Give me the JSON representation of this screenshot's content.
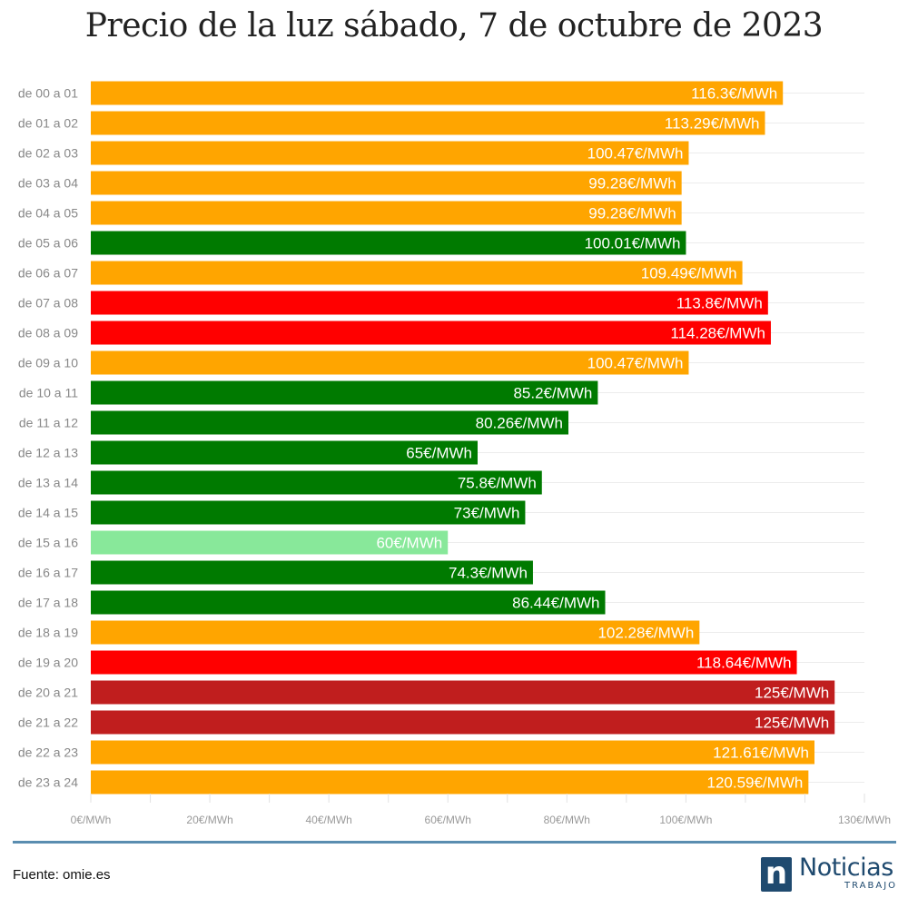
{
  "chart_data": {
    "type": "bar",
    "orientation": "horizontal",
    "title": "Precio de la luz sábado, 7 de octubre de 2023",
    "categories": [
      "de 00 a 01",
      "de 01 a 02",
      "de 02 a 03",
      "de 03 a 04",
      "de 04 a 05",
      "de 05 a 06",
      "de 06 a 07",
      "de 07 a 08",
      "de 08 a 09",
      "de 09 a 10",
      "de 10 a 11",
      "de 11 a 12",
      "de 12 a 13",
      "de 13 a 14",
      "de 14 a 15",
      "de 15 a 16",
      "de 16 a 17",
      "de 17 a 18",
      "de 18 a 19",
      "de 19 a 20",
      "de 20 a 21",
      "de 21 a 22",
      "de 22 a 23",
      "de 23 a 24"
    ],
    "values": [
      116.3,
      113.29,
      100.47,
      99.28,
      99.28,
      100.01,
      109.49,
      113.8,
      114.28,
      100.47,
      85.2,
      80.26,
      65,
      75.8,
      73,
      60,
      74.3,
      86.44,
      102.28,
      118.64,
      125,
      125,
      121.61,
      120.59
    ],
    "value_labels": [
      "116.3€/MWh",
      "113.29€/MWh",
      "100.47€/MWh",
      "99.28€/MWh",
      "99.28€/MWh",
      "100.01€/MWh",
      "109.49€/MWh",
      "113.8€/MWh",
      "114.28€/MWh",
      "100.47€/MWh",
      "85.2€/MWh",
      "80.26€/MWh",
      "65€/MWh",
      "75.8€/MWh",
      "73€/MWh",
      "60€/MWh",
      "74.3€/MWh",
      "86.44€/MWh",
      "102.28€/MWh",
      "118.64€/MWh",
      "125€/MWh",
      "125€/MWh",
      "121.61€/MWh",
      "120.59€/MWh"
    ],
    "bar_colors": [
      "#ffa500",
      "#ffa500",
      "#ffa500",
      "#ffa500",
      "#ffa500",
      "#007a00",
      "#ffa500",
      "#ff0000",
      "#ff0000",
      "#ffa500",
      "#007a00",
      "#007a00",
      "#007a00",
      "#007a00",
      "#007a00",
      "#88e89a",
      "#007a00",
      "#007a00",
      "#ffa500",
      "#ff0000",
      "#c01e1e",
      "#c01e1e",
      "#ffa500",
      "#ffa500"
    ],
    "xlim": [
      0,
      130
    ],
    "x_ticks": [
      {
        "value": 0,
        "label": "0€/MWh"
      },
      {
        "value": 20,
        "label": "20€/MWh"
      },
      {
        "value": 40,
        "label": "40€/MWh"
      },
      {
        "value": 60,
        "label": "60€/MWh"
      },
      {
        "value": 80,
        "label": "80€/MWh"
      },
      {
        "value": 100,
        "label": "100€/MWh"
      },
      {
        "value": 130,
        "label": "130€/MWh"
      }
    ],
    "minor_ticks": [
      10,
      30,
      50,
      70,
      90,
      110,
      120
    ],
    "xlabel": "",
    "ylabel": "",
    "legend": "none",
    "grid": true
  },
  "footer": {
    "source": "Fuente: omie.es"
  },
  "logo": {
    "mark": "n",
    "name": "Noticias",
    "sub": "TRABAJO",
    "color": "#1f4a6f"
  }
}
